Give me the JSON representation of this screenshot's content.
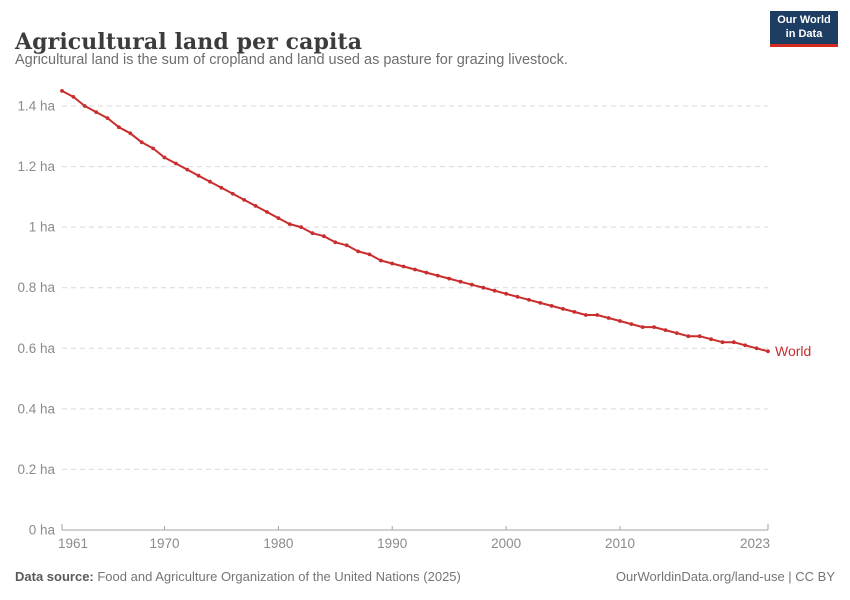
{
  "header": {
    "title": "Agricultural land per capita",
    "subtitle": "Agricultural land is the sum of cropland and land used as pasture for grazing livestock.",
    "logo": {
      "line1": "Our World",
      "line2": "in Data",
      "bg_color": "#1d3d63",
      "accent_color": "#d42b21"
    }
  },
  "chart_data": {
    "type": "line",
    "title": "Agricultural land per capita",
    "xlabel": "",
    "ylabel": "",
    "unit": "ha",
    "xlim": [
      1961,
      2023
    ],
    "ylim": [
      0,
      1.45
    ],
    "grid": "horizontal-dashed",
    "legend_position": "end-of-line-label",
    "xticks": [
      1961,
      1970,
      1980,
      1990,
      2000,
      2010,
      2023
    ],
    "yticks": [
      {
        "value": 0,
        "label": "0 ha"
      },
      {
        "value": 0.2,
        "label": "0.2 ha"
      },
      {
        "value": 0.4,
        "label": "0.4 ha"
      },
      {
        "value": 0.6,
        "label": "0.6 ha"
      },
      {
        "value": 0.8,
        "label": "0.8 ha"
      },
      {
        "value": 1,
        "label": "1 ha"
      },
      {
        "value": 1.2,
        "label": "1.2 ha"
      },
      {
        "value": 1.4,
        "label": "1.4 ha"
      }
    ],
    "x": [
      1961,
      1962,
      1963,
      1964,
      1965,
      1966,
      1967,
      1968,
      1969,
      1970,
      1971,
      1972,
      1973,
      1974,
      1975,
      1976,
      1977,
      1978,
      1979,
      1980,
      1981,
      1982,
      1983,
      1984,
      1985,
      1986,
      1987,
      1988,
      1989,
      1990,
      1991,
      1992,
      1993,
      1994,
      1995,
      1996,
      1997,
      1998,
      1999,
      2000,
      2001,
      2002,
      2003,
      2004,
      2005,
      2006,
      2007,
      2008,
      2009,
      2010,
      2011,
      2012,
      2013,
      2014,
      2015,
      2016,
      2017,
      2018,
      2019,
      2020,
      2021,
      2022,
      2023
    ],
    "series": [
      {
        "name": "World",
        "color": "#c92d2d",
        "values": [
          1.45,
          1.43,
          1.4,
          1.38,
          1.36,
          1.33,
          1.31,
          1.28,
          1.26,
          1.23,
          1.21,
          1.19,
          1.17,
          1.15,
          1.13,
          1.11,
          1.09,
          1.07,
          1.05,
          1.03,
          1.01,
          1.0,
          0.98,
          0.97,
          0.95,
          0.94,
          0.92,
          0.91,
          0.89,
          0.88,
          0.87,
          0.86,
          0.85,
          0.84,
          0.83,
          0.82,
          0.81,
          0.8,
          0.79,
          0.78,
          0.77,
          0.76,
          0.75,
          0.74,
          0.73,
          0.72,
          0.71,
          0.71,
          0.7,
          0.69,
          0.68,
          0.67,
          0.67,
          0.66,
          0.65,
          0.64,
          0.64,
          0.63,
          0.62,
          0.62,
          0.61,
          0.6,
          0.59
        ]
      }
    ]
  },
  "footer": {
    "source_label": "Data source:",
    "source_text": " Food and Agriculture Organization of the United Nations (2025)",
    "credit": "OurWorldinData.org/land-use | CC BY"
  }
}
